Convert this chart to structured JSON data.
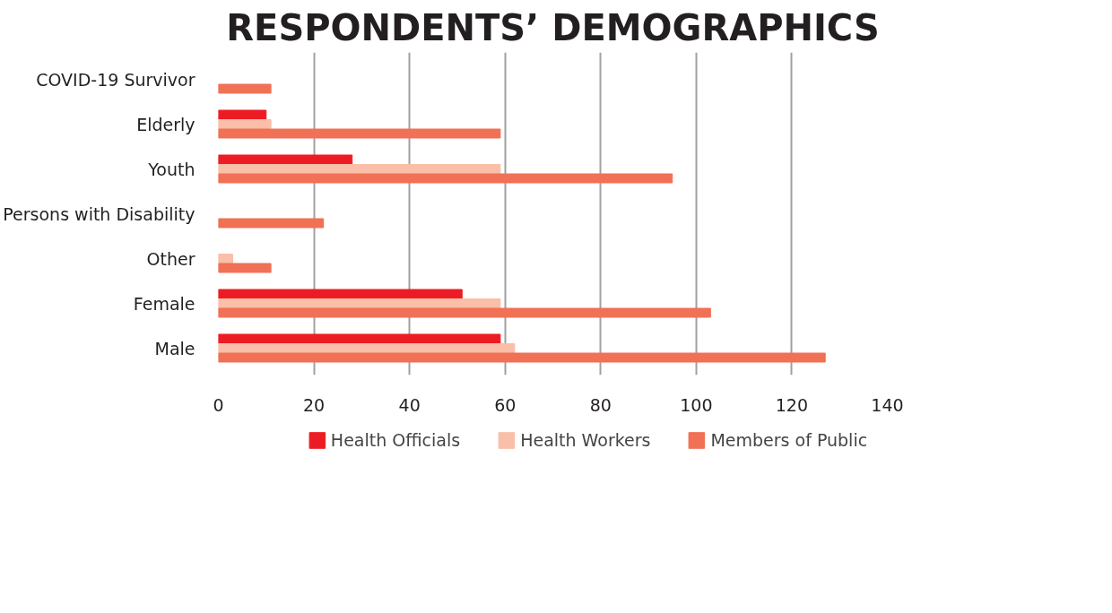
{
  "chart_data": {
    "type": "bar",
    "orientation": "horizontal",
    "title": "RESPONDENTS’ DEMOGRAPHICS",
    "categories": [
      "COVID-19 Survivor",
      "Elderly",
      "Youth",
      "Persons with Disability",
      "Other",
      "Female",
      "Male"
    ],
    "series": [
      {
        "name": "Health Officials",
        "color": "#ed1c24",
        "values": [
          null,
          10,
          28,
          null,
          null,
          51,
          59
        ]
      },
      {
        "name": "Health Workers",
        "color": "#f9bfa8",
        "values": [
          null,
          11,
          59,
          null,
          3,
          59,
          62
        ]
      },
      {
        "name": "Members of Public",
        "color": "#f07155",
        "values": [
          11,
          59,
          95,
          22,
          11,
          103,
          127
        ]
      }
    ],
    "xlim": [
      0,
      140
    ],
    "xticks": [
      0,
      20,
      40,
      60,
      80,
      100,
      120,
      140
    ],
    "grid": "x",
    "legend": "bottom"
  }
}
